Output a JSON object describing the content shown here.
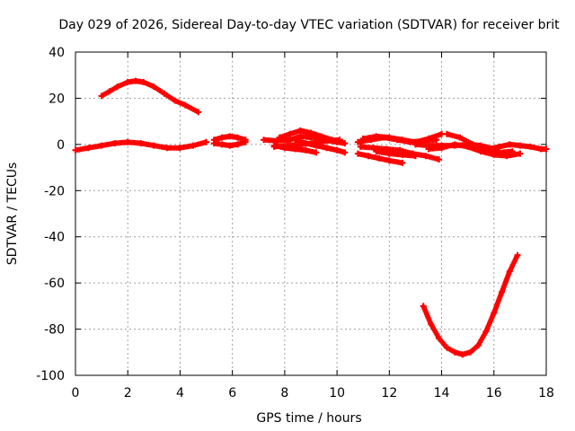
{
  "chart_data": {
    "type": "scatter",
    "title": "Day 029 of 2026, Sidereal Day-to-day VTEC variation (SDTVAR) for receiver brit",
    "xlabel": "GPS time / hours",
    "ylabel": "SDTVAR / TECUs",
    "xlim": [
      0,
      18
    ],
    "ylim": [
      -100,
      40
    ],
    "grid": true,
    "marker": "plus",
    "color": "#ff0000",
    "xticks": [
      0,
      2,
      4,
      6,
      8,
      10,
      12,
      14,
      16,
      18
    ],
    "yticks": [
      40,
      20,
      0,
      -20,
      -40,
      -60,
      -80,
      -100
    ],
    "series": [
      {
        "name": "arc-upper-hump",
        "x": [
          1.0,
          1.3,
          1.6,
          2.0,
          2.3,
          2.6,
          3.0,
          3.4,
          3.8,
          4.2,
          4.7
        ],
        "y": [
          21,
          23,
          25,
          27,
          27.5,
          27,
          25,
          22,
          19,
          17,
          14
        ]
      },
      {
        "name": "arc-baseline-long",
        "x": [
          0.0,
          0.5,
          1.0,
          1.5,
          2.0,
          2.5,
          3.0,
          3.5,
          4.0,
          4.5,
          5.0
        ],
        "y": [
          -2.5,
          -1.5,
          -0.5,
          0.5,
          1,
          0.5,
          -0.5,
          -1.5,
          -1.5,
          -0.5,
          1
        ]
      },
      {
        "name": "arc-6h-a",
        "x": [
          5.3,
          5.6,
          5.9,
          6.2,
          6.5
        ],
        "y": [
          2,
          3,
          3.5,
          3,
          2
        ]
      },
      {
        "name": "arc-6h-b",
        "x": [
          5.3,
          5.6,
          5.9,
          6.2,
          6.5
        ],
        "y": [
          0.5,
          0,
          -0.5,
          0,
          1
        ]
      },
      {
        "name": "arc-8h-a",
        "x": [
          7.2,
          7.7,
          8.2,
          8.6,
          9.0,
          9.5,
          10.0,
          10.3
        ],
        "y": [
          2,
          1.5,
          2,
          3.5,
          3,
          2,
          1,
          0.5
        ]
      },
      {
        "name": "arc-8h-b",
        "x": [
          7.6,
          8.1,
          8.6,
          9.1,
          9.6,
          10.1
        ],
        "y": [
          -1,
          -0.5,
          0,
          0.5,
          1.5,
          2
        ]
      },
      {
        "name": "arc-8h-c",
        "x": [
          7.8,
          8.2,
          8.6,
          9.0,
          9.4,
          9.8,
          10.2
        ],
        "y": [
          3,
          4.5,
          6,
          5,
          3.5,
          2,
          1
        ]
      },
      {
        "name": "arc-8h-d",
        "x": [
          8.4,
          8.8,
          9.2,
          9.6,
          10.0,
          10.3
        ],
        "y": [
          2,
          0.5,
          -0.5,
          -1.5,
          -2.5,
          -3.5
        ]
      },
      {
        "name": "arc-8h-e",
        "x": [
          7.6,
          8.0,
          8.4,
          8.8,
          9.2
        ],
        "y": [
          -0.5,
          -1.5,
          -2,
          -2.5,
          -3.5
        ]
      },
      {
        "name": "arc-11h-a",
        "x": [
          10.8,
          11.2,
          11.6,
          12.0,
          12.5
        ],
        "y": [
          -4,
          -5,
          -6,
          -7,
          -8
        ]
      },
      {
        "name": "arc-11h-b",
        "x": [
          10.8,
          11.3,
          11.8,
          12.3,
          12.8,
          13.3,
          13.8
        ],
        "y": [
          1,
          2,
          3,
          2,
          1,
          1.5,
          2
        ]
      },
      {
        "name": "arc-11h-c",
        "x": [
          11.0,
          11.5,
          12.0,
          12.5,
          13.0,
          13.5,
          14.0
        ],
        "y": [
          2.5,
          3.5,
          3,
          2,
          1,
          2.5,
          4.5
        ]
      },
      {
        "name": "arc-11h-d",
        "x": [
          10.9,
          11.4,
          11.9,
          12.4,
          12.9,
          13.4,
          13.9
        ],
        "y": [
          -1,
          -1.5,
          -2,
          -2.5,
          -4,
          -5,
          -6.5
        ]
      },
      {
        "name": "arc-11h-e",
        "x": [
          11.5,
          12.0,
          12.5,
          13.0
        ],
        "y": [
          -3,
          -4,
          -4.5,
          -5
        ]
      },
      {
        "name": "arc-14h-a",
        "x": [
          13.5,
          14.0,
          14.5,
          15.0,
          15.5,
          16.0,
          16.5,
          17.0
        ],
        "y": [
          -2,
          -1.5,
          0,
          -1,
          -3,
          -4.5,
          -5,
          -4
        ]
      },
      {
        "name": "arc-14h-b",
        "x": [
          14.2,
          14.7,
          15.2,
          15.7,
          16.2,
          16.7
        ],
        "y": [
          4.5,
          3,
          0,
          -2,
          -3.5,
          -3
        ]
      },
      {
        "name": "arc-14h-c",
        "x": [
          13.0,
          13.5,
          14.0,
          14.5,
          15.0,
          15.5,
          16.0
        ],
        "y": [
          0,
          -0.5,
          -0.5,
          -0.5,
          0,
          -0.5,
          -2
        ]
      },
      {
        "name": "arc-17h",
        "x": [
          15.8,
          16.2,
          16.6,
          17.0,
          17.4,
          17.8,
          18.0
        ],
        "y": [
          -2,
          -1,
          0,
          -0.5,
          -1,
          -2,
          -2
        ]
      },
      {
        "name": "arc-lower-dip",
        "x": [
          13.3,
          13.6,
          13.9,
          14.2,
          14.5,
          14.8,
          15.1,
          15.4,
          15.7,
          16.0,
          16.3,
          16.6,
          16.9
        ],
        "y": [
          -70,
          -78,
          -84,
          -88,
          -90,
          -91,
          -90,
          -87,
          -81,
          -73,
          -64,
          -55,
          -48
        ]
      }
    ]
  }
}
